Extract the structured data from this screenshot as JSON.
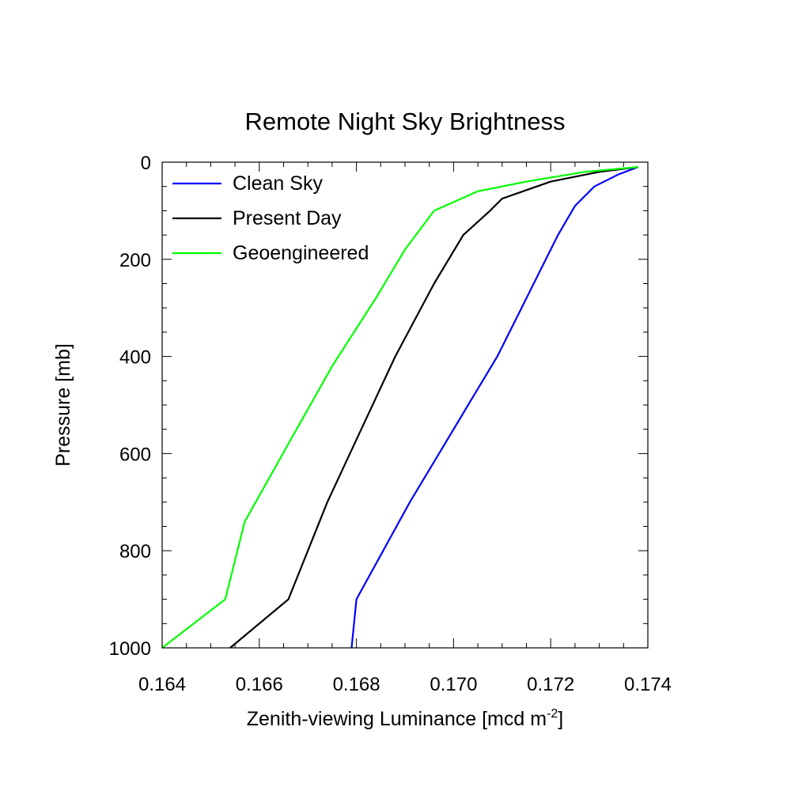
{
  "chart_data": {
    "type": "line",
    "title": "Remote Night Sky Brightness",
    "xlabel_main": "Zenith-viewing Luminance [mcd m",
    "xlabel_sup": "-2",
    "xlabel_tail": "]",
    "ylabel": "Pressure [mb]",
    "xlim": [
      0.164,
      0.174
    ],
    "ylim": [
      0,
      1000
    ],
    "y_inverted": true,
    "xticks": [
      0.164,
      0.166,
      0.168,
      0.17,
      0.172,
      0.174
    ],
    "xtick_labels": [
      "0.164",
      "0.166",
      "0.168",
      "0.170",
      "0.172",
      "0.174"
    ],
    "yticks": [
      0,
      200,
      400,
      600,
      800,
      1000
    ],
    "ytick_labels": [
      "0",
      "200",
      "400",
      "600",
      "800",
      "1000"
    ],
    "legend_position": "top-left",
    "grid": false,
    "series": [
      {
        "name": "Clean Sky",
        "color": "#0000ff",
        "points": [
          [
            0.1738,
            10
          ],
          [
            0.1734,
            25
          ],
          [
            0.1729,
            50
          ],
          [
            0.1725,
            90
          ],
          [
            0.17215,
            150
          ],
          [
            0.1718,
            220
          ],
          [
            0.1714,
            300
          ],
          [
            0.1709,
            400
          ],
          [
            0.1703,
            500
          ],
          [
            0.1697,
            600
          ],
          [
            0.1691,
            700
          ],
          [
            0.16855,
            800
          ],
          [
            0.168,
            900
          ],
          [
            0.1679,
            1000
          ]
        ]
      },
      {
        "name": "Present Day",
        "color": "#000000",
        "points": [
          [
            0.1738,
            10
          ],
          [
            0.173,
            20
          ],
          [
            0.172,
            40
          ],
          [
            0.171,
            75
          ],
          [
            0.17075,
            100
          ],
          [
            0.1702,
            150
          ],
          [
            0.1696,
            250
          ],
          [
            0.1688,
            400
          ],
          [
            0.1681,
            550
          ],
          [
            0.1674,
            700
          ],
          [
            0.167,
            800
          ],
          [
            0.1666,
            900
          ],
          [
            0.1654,
            1000
          ]
        ]
      },
      {
        "name": "Geoengineered",
        "color": "#00ff00",
        "points": [
          [
            0.1738,
            10
          ],
          [
            0.1727,
            20
          ],
          [
            0.1715,
            40
          ],
          [
            0.1705,
            60
          ],
          [
            0.1696,
            100
          ],
          [
            0.169,
            180
          ],
          [
            0.1684,
            280
          ],
          [
            0.1675,
            420
          ],
          [
            0.1666,
            580
          ],
          [
            0.1657,
            740
          ],
          [
            0.1653,
            900
          ],
          [
            0.164,
            1000
          ]
        ]
      }
    ]
  }
}
